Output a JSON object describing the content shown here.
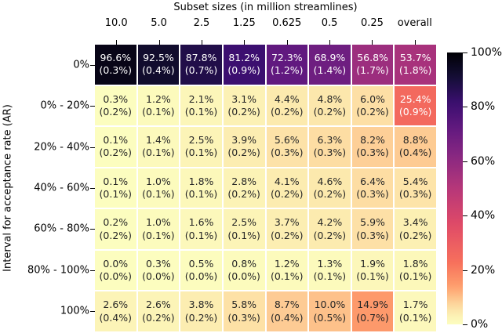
{
  "title": "Subset sizes (in million streamlines)",
  "y_axis_label": "Interval for acceptance rate (AR)",
  "chart_data": {
    "type": "heatmap",
    "title": "Subset sizes (in million streamlines)",
    "ylabel": "Interval for acceptance rate (AR)",
    "columns": [
      "10.0",
      "5.0",
      "2.5",
      "1.25",
      "0.625",
      "0.5",
      "0.25",
      "overall"
    ],
    "rows": [
      "0%",
      "0% - 20%",
      "20% - 40%",
      "40% - 60%",
      "60% - 80%",
      "80% - 100%",
      "100%"
    ],
    "values": [
      [
        96.6,
        92.5,
        87.8,
        81.2,
        72.3,
        68.9,
        56.8,
        53.7
      ],
      [
        0.3,
        1.2,
        2.1,
        3.1,
        4.4,
        4.8,
        6.0,
        25.4
      ],
      [
        0.1,
        1.4,
        2.5,
        3.9,
        5.6,
        6.3,
        8.2,
        8.8
      ],
      [
        0.1,
        1.0,
        1.8,
        2.8,
        4.1,
        4.6,
        6.4,
        5.4
      ],
      [
        0.2,
        1.0,
        1.6,
        2.5,
        3.7,
        4.2,
        5.9,
        3.4
      ],
      [
        0.0,
        0.3,
        0.5,
        0.8,
        1.2,
        1.3,
        1.9,
        1.8
      ],
      [
        2.6,
        2.6,
        3.8,
        5.8,
        8.7,
        10.0,
        14.9,
        1.7
      ]
    ],
    "std_errors": [
      [
        0.3,
        0.4,
        0.7,
        0.9,
        1.2,
        1.4,
        1.7,
        1.8
      ],
      [
        0.2,
        0.1,
        0.1,
        0.2,
        0.2,
        0.2,
        0.2,
        0.9
      ],
      [
        0.2,
        0.1,
        0.1,
        0.2,
        0.3,
        0.3,
        0.3,
        0.4
      ],
      [
        0.1,
        0.1,
        0.1,
        0.2,
        0.2,
        0.2,
        0.3,
        0.3
      ],
      [
        0.2,
        0.1,
        0.1,
        0.1,
        0.2,
        0.2,
        0.3,
        0.2
      ],
      [
        0.0,
        0.0,
        0.0,
        0.0,
        0.1,
        0.1,
        0.1,
        0.1
      ],
      [
        0.4,
        0.2,
        0.2,
        0.3,
        0.4,
        0.5,
        0.7,
        0.1
      ]
    ],
    "cell_text_format": "{value}% ({std}%)",
    "vmin": 0,
    "vmax": 100,
    "grid_line_color": "#ffffff",
    "legend_position": "right",
    "colorbar_tick_labels": [
      "0%",
      "20%",
      "40%",
      "60%",
      "80%",
      "100%"
    ],
    "colormap": "magma_reversed",
    "colormap_stops_dark_to_light": [
      [
        0.0,
        "#000004"
      ],
      [
        0.125,
        "#140e36"
      ],
      [
        0.25,
        "#3b0f70"
      ],
      [
        0.375,
        "#641a80"
      ],
      [
        0.5,
        "#8c2981"
      ],
      [
        0.625,
        "#b73779"
      ],
      [
        0.75,
        "#de4968"
      ],
      [
        0.875,
        "#f7705c"
      ],
      [
        0.938,
        "#fe9f6d"
      ],
      [
        1.0,
        "#fcfdbf"
      ]
    ],
    "shade_gamma": 1.4,
    "annotation_text_dark": "#262626",
    "annotation_text_light": "#ffffff"
  }
}
